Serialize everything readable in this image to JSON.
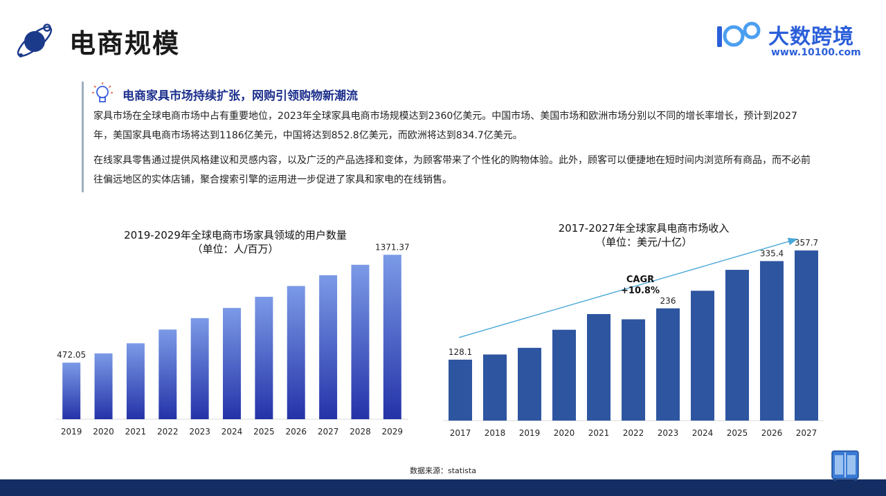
{
  "header": {
    "title": "电商规模",
    "brand_name": "大数跨境",
    "brand_url": "www.10100.com"
  },
  "intro": {
    "heading": "电商家具市场持续扩张，网购引领购物新潮流",
    "paragraphs": [
      "家具市场在全球电商市场中占有重要地位，2023年全球家具电商市场规模达到2360亿美元。中国市场、美国市场和欧洲市场分别以不同的增长率增长，预计到2027年，美国家具电商市场将达到1186亿美元，中国将达到852.8亿美元，而欧洲将达到834.7亿美元。",
      "在线家具零售通过提供风格建议和灵感内容，以及广泛的产品选择和变体，为顾客带来了个性化的购物体验。此外，顾客可以便捷地在短时间内浏览所有商品，而不必前往偏远地区的实体店铺，聚合搜索引擎的运用进一步促进了家具和家电的在线销售。"
    ]
  },
  "chart_data": [
    {
      "type": "bar",
      "title": "2019-2029年全球电商市场家具领域的用户数量",
      "subtitle": "（单位：人/百万）",
      "categories": [
        "2019",
        "2020",
        "2021",
        "2022",
        "2023",
        "2024",
        "2025",
        "2026",
        "2027",
        "2028",
        "2029"
      ],
      "values": [
        472.05,
        549,
        633,
        748,
        843,
        928,
        1021,
        1111,
        1201,
        1288,
        1371.37
      ],
      "labels": [
        "472.05",
        "",
        "",
        "",
        "",
        "",
        "",
        "",
        "",
        "",
        "1371.37"
      ],
      "ylim": [
        0,
        1500
      ],
      "grid": false,
      "gradient": [
        "#7b9ae6",
        "#2433a8"
      ]
    },
    {
      "type": "bar",
      "title": "2017-2027年全球家具电商市场收入",
      "subtitle": "（单位：美元/十亿）",
      "categories": [
        "2017",
        "2018",
        "2019",
        "2020",
        "2021",
        "2022",
        "2023",
        "2024",
        "2025",
        "2026",
        "2027"
      ],
      "values": [
        128.1,
        139,
        153,
        191,
        224,
        213,
        236,
        273,
        317,
        335.4,
        357.7
      ],
      "labels": [
        "128.1",
        "",
        "",
        "",
        "",
        "",
        "236",
        "",
        "",
        "335.4",
        "357.7"
      ],
      "ylim": [
        0,
        400
      ],
      "grid": false,
      "color": "#2e55a0",
      "annotation": "CAGR\n+10.8%",
      "trend_color": "#4aa8d8"
    }
  ],
  "footer": {
    "source": "数据来源：statista",
    "bar_color": "#142d63"
  }
}
